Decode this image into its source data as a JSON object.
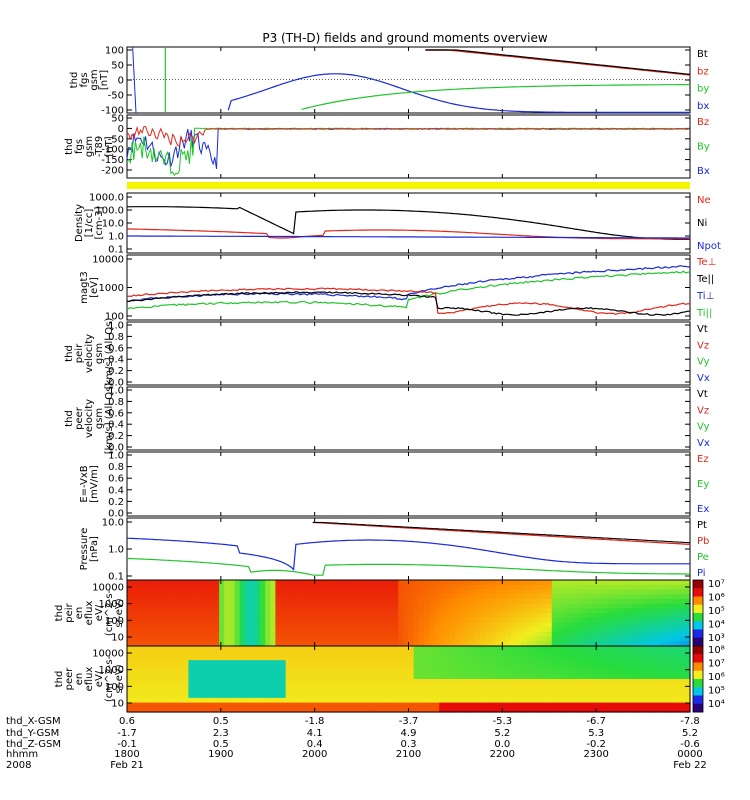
{
  "title": "P3 (TH-D) fields and ground moments overview",
  "chart_data": [
    {
      "type": "line",
      "id": "fgs",
      "ylabel": [
        "thd",
        "fgs",
        "gsm",
        "[nT]"
      ],
      "ylim": [
        -100,
        100
      ],
      "yticks": [
        "100",
        "50",
        "0",
        "-50",
        "-100"
      ],
      "legend": [
        {
          "name": "Bt",
          "color": "#000000"
        },
        {
          "name": "bz",
          "color": "#e0271b"
        },
        {
          "name": "by",
          "color": "#22c42b"
        },
        {
          "name": "bx",
          "color": "#1a2ad9"
        }
      ]
    },
    {
      "type": "line",
      "id": "fgs_t89",
      "ylabel": [
        "thd",
        "fgs",
        "gsm",
        "-T89",
        "[nT]"
      ],
      "ylim": [
        -210,
        50
      ],
      "yticks": [
        "50",
        "0",
        "-50",
        "-100",
        "-150",
        "-200"
      ],
      "legend": [
        {
          "name": "Bz",
          "color": "#e0271b"
        },
        {
          "name": "By",
          "color": "#22c42b"
        },
        {
          "name": "Bx",
          "color": "#1a2ad9"
        }
      ]
    },
    {
      "type": "area",
      "id": "status_bar",
      "color": "#f5f500"
    },
    {
      "type": "line",
      "id": "density",
      "scale": "log",
      "ylabel": [
        "Density",
        "[1/cc]",
        "[cm-3]"
      ],
      "yticks": [
        "1000.0",
        "100.0",
        "10.0",
        "1.0",
        "0.1"
      ],
      "legend": [
        {
          "name": "Ne",
          "color": "#e0271b"
        },
        {
          "name": "Ni",
          "color": "#000000"
        },
        {
          "name": "Npot",
          "color": "#1a2ad9"
        }
      ]
    },
    {
      "type": "line",
      "id": "temperature",
      "scale": "log",
      "ylabel": [
        "magt3",
        "[eV]"
      ],
      "yticks": [
        "10000",
        "1000",
        "100"
      ],
      "legend": [
        {
          "name": "Te⊥",
          "color": "#e0271b"
        },
        {
          "name": "Te||",
          "color": "#000000"
        },
        {
          "name": "Ti⊥",
          "color": "#1a2ad9"
        },
        {
          "name": "Ti||",
          "color": "#22c42b"
        }
      ]
    },
    {
      "type": "line",
      "id": "peir_velocity",
      "ylabel": [
        "thd",
        "peir",
        "velocity",
        "gsm",
        "[km/s] (All Qs)"
      ],
      "ylim": [
        0,
        1
      ],
      "yticks": [
        "1.0",
        "0.8",
        "0.6",
        "0.4",
        "0.2",
        "0.0"
      ],
      "legend": [
        {
          "name": "Vt",
          "color": "#000000"
        },
        {
          "name": "Vz",
          "color": "#e0271b"
        },
        {
          "name": "Vy",
          "color": "#22c42b"
        },
        {
          "name": "Vx",
          "color": "#1a2ad9"
        }
      ]
    },
    {
      "type": "line",
      "id": "peer_velocity",
      "ylabel": [
        "thd",
        "peer",
        "velocity",
        "gsm",
        "[km/s] (All Qs)"
      ],
      "ylim": [
        0,
        1
      ],
      "yticks": [
        "1.0",
        "0.8",
        "0.6",
        "0.4",
        "0.2",
        "0.0"
      ],
      "legend": [
        {
          "name": "Vt",
          "color": "#000000"
        },
        {
          "name": "Vz",
          "color": "#e0271b"
        },
        {
          "name": "Vy",
          "color": "#22c42b"
        },
        {
          "name": "Vx",
          "color": "#1a2ad9"
        }
      ]
    },
    {
      "type": "line",
      "id": "efield",
      "ylabel": [
        "E=-VxB",
        "[mV/m]"
      ],
      "ylim": [
        0,
        1
      ],
      "yticks": [
        "1.0",
        "0.8",
        "0.6",
        "0.4",
        "0.2",
        "0.0"
      ],
      "legend": [
        {
          "name": "Ez",
          "color": "#e0271b"
        },
        {
          "name": "Ey",
          "color": "#22c42b"
        },
        {
          "name": "Ex",
          "color": "#1a2ad9"
        }
      ]
    },
    {
      "type": "line",
      "id": "pressure",
      "scale": "log",
      "ylabel": [
        "Pressure",
        "[nPa]"
      ],
      "yticks": [
        "10.0",
        "1.0",
        "0.1"
      ],
      "legend": [
        {
          "name": "Pt",
          "color": "#000000"
        },
        {
          "name": "Pb",
          "color": "#e0271b"
        },
        {
          "name": "Pe",
          "color": "#22c42b"
        },
        {
          "name": "Pi",
          "color": "#1a2ad9"
        }
      ]
    },
    {
      "type": "heatmap",
      "id": "peir_eflux",
      "ylabel": [
        "thd",
        "peir",
        "en",
        "eflux",
        "eV/",
        "(cm^2-s-",
        "sr-eV)"
      ],
      "yticks": [
        "10000",
        "1000",
        "100",
        "10"
      ],
      "colorbar_ticks": [
        "10⁷",
        "10⁶",
        "10⁵",
        "10⁴",
        "10³"
      ]
    },
    {
      "type": "heatmap",
      "id": "peer_eflux",
      "ylabel": [
        "thd",
        "peer",
        "en",
        "eflux",
        "eV/",
        "(cm^2-s-",
        "sr-eV)"
      ],
      "yticks": [
        "10000",
        "1000",
        "100",
        "10"
      ],
      "colorbar_ticks": [
        "10⁸",
        "10⁷",
        "10⁶",
        "10⁵",
        "10⁴"
      ]
    }
  ],
  "orbit_labels": [
    "thd_X-GSM",
    "thd_Y-GSM",
    "thd_Z-GSM",
    "hhmm",
    "2008"
  ],
  "orbit_table": [
    [
      "0.6",
      "-1.7",
      "-0.1",
      "1800",
      "Feb 21"
    ],
    [
      "0.5",
      "2.3",
      "0.5",
      "1900",
      ""
    ],
    [
      "-1.8",
      "4.1",
      "0.4",
      "2000",
      ""
    ],
    [
      "-3.7",
      "4.9",
      "0.3",
      "2100",
      ""
    ],
    [
      "-5.3",
      "5.2",
      "0.0",
      "2200",
      ""
    ],
    [
      "-6.7",
      "5.3",
      "-0.2",
      "2300",
      ""
    ],
    [
      "-7.8",
      "5.2",
      "-0.6",
      "0000",
      "Feb 22"
    ]
  ]
}
